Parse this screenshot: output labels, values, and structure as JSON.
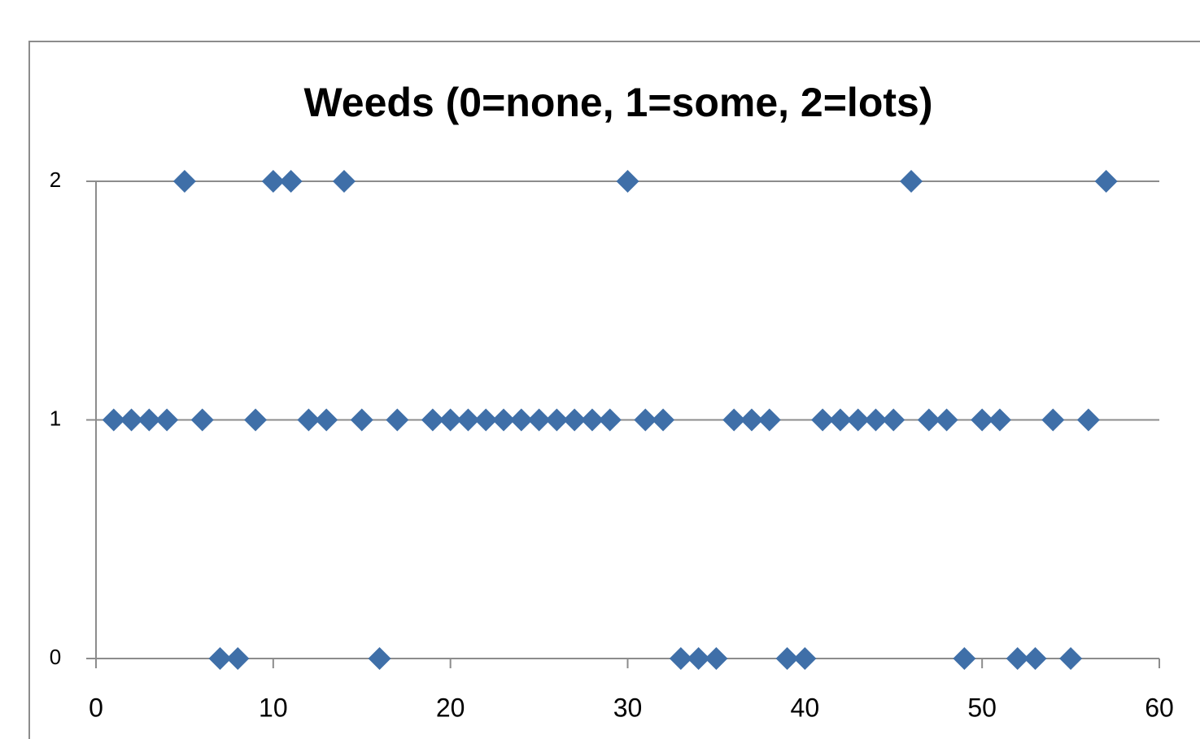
{
  "chart_data": {
    "type": "scatter",
    "title": "Weeds (0=none, 1=some, 2=lots)",
    "series": [
      {
        "color": "#3f6fa8",
        "x": [
          1,
          2,
          3,
          4,
          5,
          6,
          7,
          8,
          9,
          10,
          11,
          12,
          13,
          14,
          15,
          16,
          17,
          19,
          20,
          21,
          22,
          23,
          24,
          25,
          26,
          27,
          28,
          29,
          30,
          31,
          32,
          33,
          34,
          35,
          36,
          37,
          38,
          39,
          40,
          41,
          42,
          43,
          44,
          45,
          46,
          47,
          48,
          49,
          50,
          51,
          52,
          53,
          54,
          55,
          56,
          57
        ],
        "values": [
          1,
          1,
          1,
          1,
          2,
          1,
          0,
          0,
          1,
          2,
          2,
          1,
          1,
          2,
          1,
          0,
          1,
          1,
          1,
          1,
          1,
          1,
          1,
          1,
          1,
          1,
          1,
          1,
          2,
          1,
          1,
          0,
          0,
          0,
          1,
          1,
          1,
          0,
          0,
          1,
          1,
          1,
          1,
          1,
          2,
          1,
          1,
          0,
          1,
          1,
          0,
          0,
          1,
          0,
          1,
          2
        ]
      }
    ],
    "xlim": [
      0,
      60
    ],
    "xticks": [
      0,
      10,
      20,
      30,
      40,
      50,
      60
    ],
    "ylim": [
      0,
      2
    ],
    "yticks": [
      0,
      1,
      2
    ],
    "grid": true
  }
}
